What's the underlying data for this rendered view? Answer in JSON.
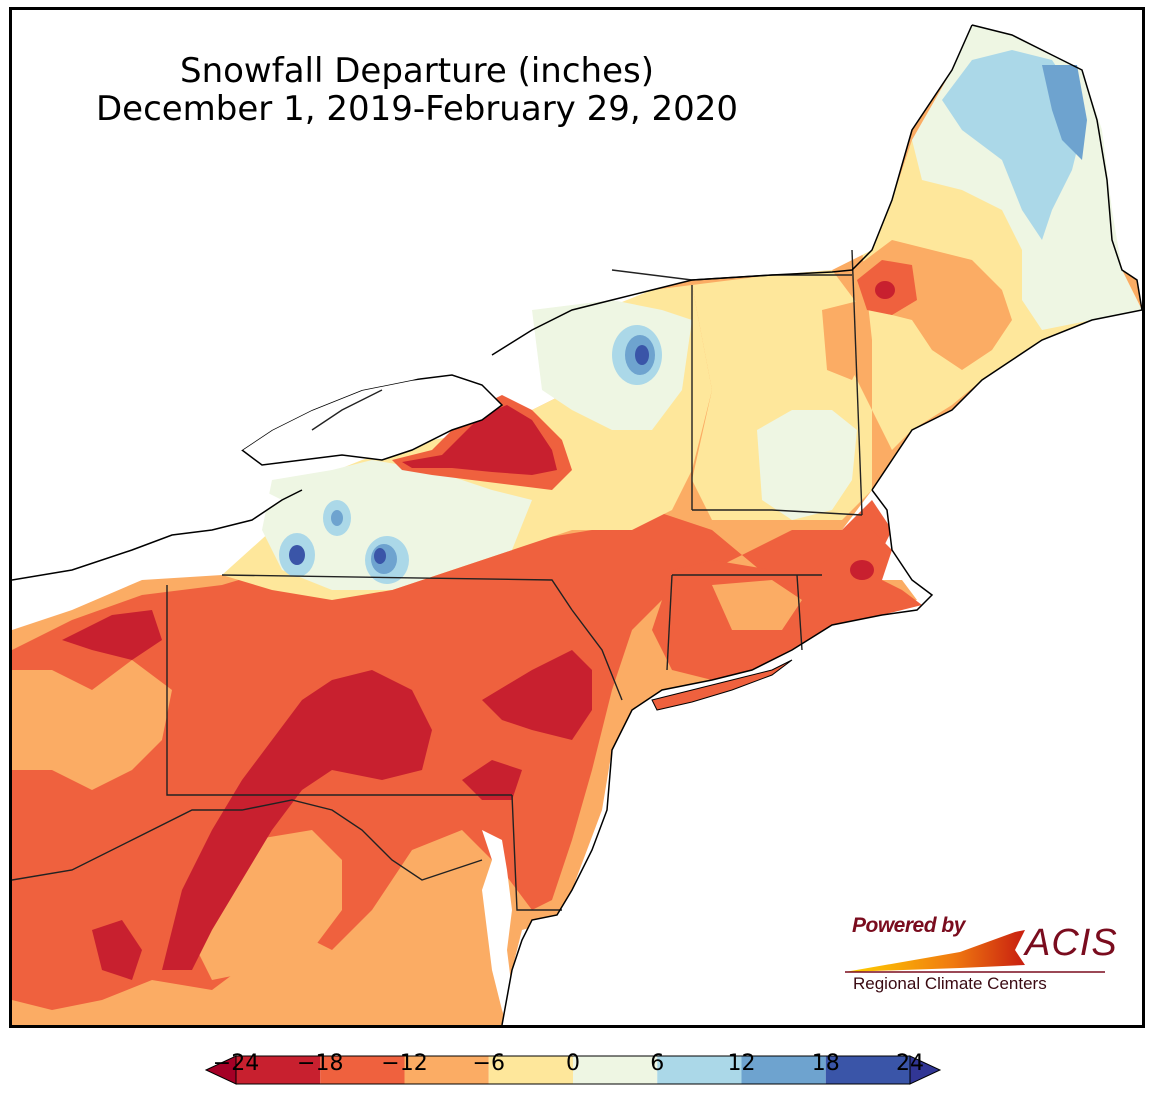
{
  "map": {
    "title_line1": "Snowfall Departure (inches)",
    "title_line2": "December 1, 2019-February 29, 2020"
  },
  "logo": {
    "powered_by": "Powered by",
    "name": "ACIS",
    "subtitle": "Regional Climate Centers"
  },
  "colorbar": {
    "ticks": [
      "−24",
      "−18",
      "−12",
      "−6",
      "0",
      "6",
      "12",
      "18",
      "24"
    ],
    "bins": [
      {
        "range": "-24 to -18",
        "color": "#c8202f"
      },
      {
        "range": "-18 to -12",
        "color": "#ef613e"
      },
      {
        "range": "-12 to -6",
        "color": "#fbac64"
      },
      {
        "range": "-6 to 0",
        "color": "#fee79b"
      },
      {
        "range": "0 to 6",
        "color": "#eef6e3"
      },
      {
        "range": "6 to 12",
        "color": "#abd8e8"
      },
      {
        "range": "12 to 18",
        "color": "#6ea3cf"
      },
      {
        "range": "18 to 24",
        "color": "#3a55a8"
      }
    ],
    "extend_low_color": "#a50026",
    "extend_high_color": "#313695"
  }
}
